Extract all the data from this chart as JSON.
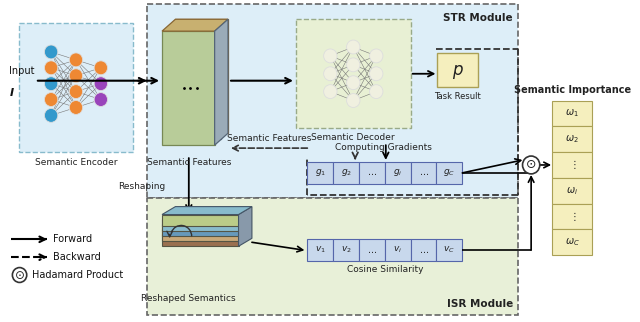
{
  "fig_width": 6.4,
  "fig_height": 3.22,
  "dpi": 100,
  "bg_color": "#ffffff",
  "str_module_bg": "#ddeef8",
  "isr_module_bg": "#e8f0d8",
  "encoder_bg": "#ddeef8",
  "decoder_bg": "#e8f0d4",
  "p_box_color": "#f5efbe",
  "omega_box_color": "#f5efbe",
  "gradient_box_color": "#c8d8ec",
  "velocity_box_color": "#c8d8ec",
  "title_str": "STR Module",
  "title_isr": "ISR Module",
  "title_importance": "Semantic Importance",
  "label_encoder": "Semantic Encoder",
  "label_features": "Semantic Features",
  "label_decoder": "Semantic Decoder",
  "label_task": "Task Result",
  "label_gradients": "Computing Gradients",
  "label_reshaping": "Reshaping",
  "label_cosine": "Cosine Similarity",
  "label_reshaped": "Reshaped Semantics",
  "legend_forward_label": "Forward",
  "legend_backward_label": "Backward",
  "legend_hadamard_label": "Hadamard Product",
  "input_label": "Input",
  "enc_node_colors": [
    "#3399bb",
    "#ee8822",
    "#3399bb",
    "#ee8822",
    "#3399bb"
  ],
  "enc_node_colors2": [
    "#ee8822",
    "#ee8822",
    "#ee8822",
    "#ee8822"
  ],
  "enc_node_colors3": [
    "#ee8822",
    "#9955bb",
    "#9955bb"
  ],
  "dec_node_color": "#f5f5e8"
}
